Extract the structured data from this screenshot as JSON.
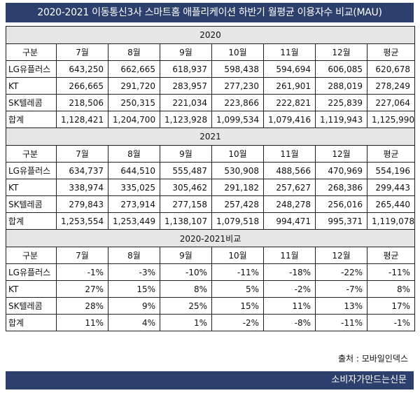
{
  "title": "2020-2021 이동통신3사 스마트홈 애플리케이션 하반기 월평균 이용자수 비교(MAU)",
  "columns": [
    "구분",
    "7월",
    "8월",
    "9월",
    "10월",
    "11월",
    "12월",
    "평균"
  ],
  "sections": [
    {
      "heading": "2020",
      "rows": [
        [
          "LG유플러스",
          "643,250",
          "662,665",
          "618,937",
          "598,438",
          "594,694",
          "606,085",
          "620,678"
        ],
        [
          "KT",
          "266,665",
          "291,720",
          "283,957",
          "277,230",
          "261,901",
          "288,019",
          "278,249"
        ],
        [
          "SK텔레콤",
          "218,506",
          "250,315",
          "221,034",
          "223,866",
          "222,821",
          "225,839",
          "227,064"
        ],
        [
          "합계",
          "1,128,421",
          "1,204,700",
          "1,123,928",
          "1,099,534",
          "1,079,416",
          "1,119,943",
          "1,125,990"
        ]
      ]
    },
    {
      "heading": "2021",
      "rows": [
        [
          "LG유플러스",
          "634,737",
          "644,510",
          "555,487",
          "530,908",
          "488,566",
          "470,969",
          "554,196"
        ],
        [
          "KT",
          "338,974",
          "335,025",
          "305,462",
          "291,182",
          "257,627",
          "268,386",
          "299,443"
        ],
        [
          "SK텔레콤",
          "279,843",
          "273,914",
          "277,158",
          "257,428",
          "248,278",
          "256,016",
          "265,440"
        ],
        [
          "합계",
          "1,253,554",
          "1,253,449",
          "1,138,107",
          "1,079,518",
          "994,471",
          "995,371",
          "1,119,078"
        ]
      ]
    },
    {
      "heading": "2020-2021비교",
      "rows": [
        [
          "LG유플러스",
          "-1%",
          "-3%",
          "-10%",
          "-11%",
          "-18%",
          "-22%",
          "-11%"
        ],
        [
          "KT",
          "27%",
          "15%",
          "8%",
          "5%",
          "-2%",
          "-7%",
          "8%"
        ],
        [
          "SK텔레콤",
          "28%",
          "9%",
          "25%",
          "15%",
          "11%",
          "13%",
          "17%"
        ],
        [
          "합계",
          "11%",
          "4%",
          "1%",
          "-2%",
          "-8%",
          "-11%",
          "-1%"
        ]
      ]
    }
  ],
  "source": "출처 : 모바일인덱스",
  "brand": "소비자가만드는신문"
}
